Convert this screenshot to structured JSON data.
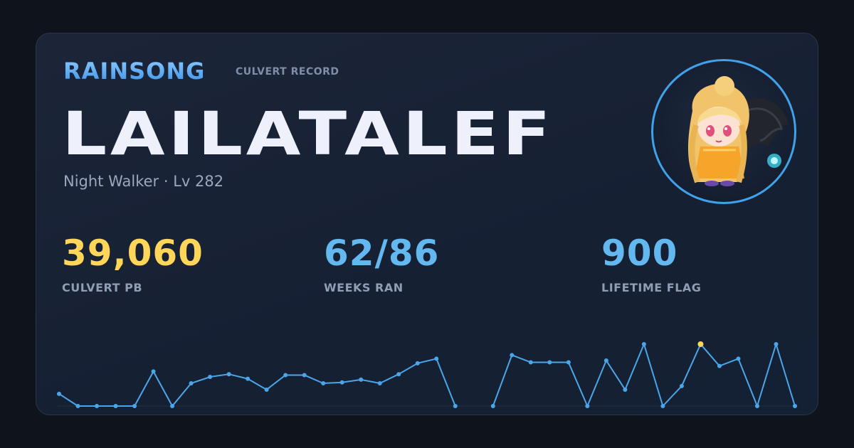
{
  "header": {
    "brand": "RAINSONG",
    "subtitle": "CULVERT RECORD"
  },
  "character": {
    "name": "LAILATALEF",
    "details": "Night Walker · Lv 282",
    "avatar_icon": "character-avatar-icon"
  },
  "stats": [
    {
      "value": "39,060",
      "label": "CULVERT PB",
      "color": "#ffd55a"
    },
    {
      "value": "62/86",
      "label": "WEEKS RAN",
      "color": "#64b8f0"
    },
    {
      "value": "900",
      "label": "LIFETIME FLAG",
      "color": "#64b8f0"
    }
  ],
  "colors": {
    "line": "#4aa6e8",
    "highlight": "#ffd55a",
    "background": "#162033"
  },
  "chart_data": {
    "type": "line",
    "series": [
      {
        "values": [
          6700,
          0,
          0,
          0,
          0,
          19000,
          0,
          12500,
          16000,
          17500,
          15000,
          9000,
          17000,
          17000,
          12500,
          13000,
          14500,
          12500,
          17500,
          23500,
          26000,
          0,
          null,
          0,
          28000,
          24000,
          24000,
          24000,
          0,
          25000,
          9000,
          34000,
          0,
          11000,
          34000,
          22000,
          26000,
          0,
          34000,
          0
        ]
      }
    ],
    "highlight_index": 34,
    "ylim": [
      0,
      39060
    ],
    "grid": false
  }
}
